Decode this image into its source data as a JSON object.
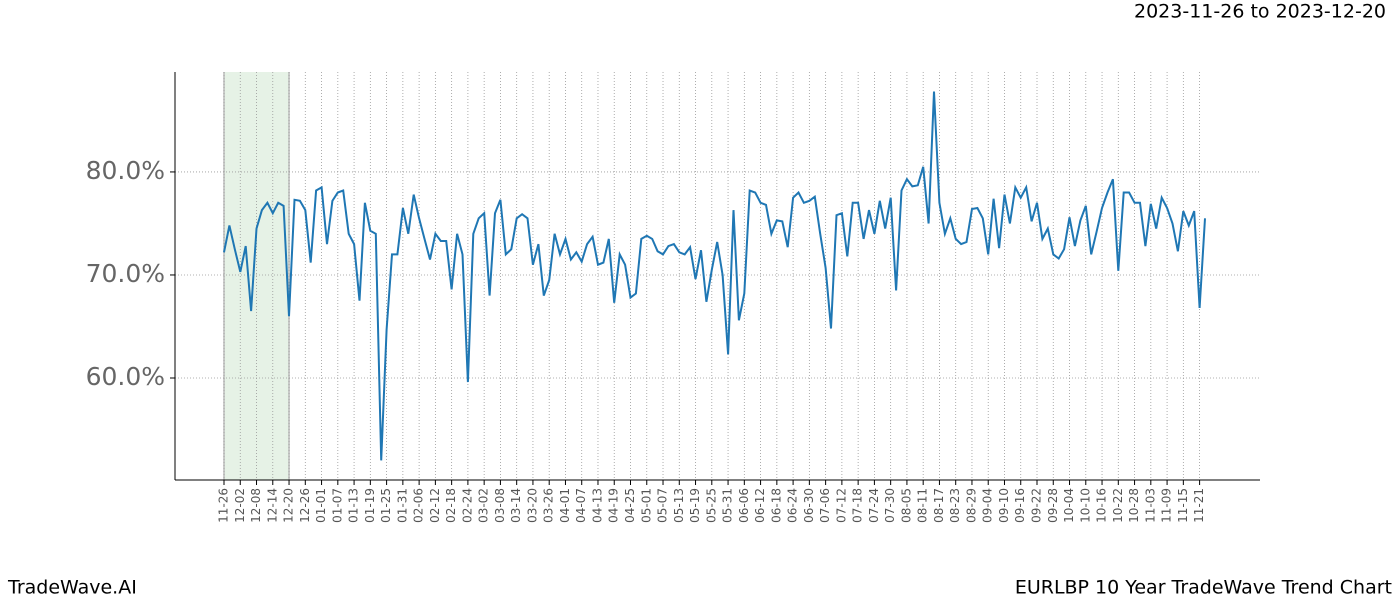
{
  "chart_data": {
    "type": "line",
    "subtitle": "2023-11-26 to 2023-12-20",
    "footer_left": "TradeWave.AI",
    "footer_right": "EURLBP 10 Year TradeWave Trend Chart",
    "color": "#1f77b4",
    "shade": {
      "from": "11-26",
      "to": "12-20",
      "color": "#e6f2e6"
    },
    "grid": true,
    "ylim": [
      50.1,
      89.7
    ],
    "yticks": [
      {
        "value": 60,
        "label": "60.0%"
      },
      {
        "value": 70,
        "label": "70.0%"
      },
      {
        "value": 80,
        "label": "80.0%"
      }
    ],
    "categories": [
      "11-26",
      null,
      null,
      "12-02",
      null,
      null,
      "12-08",
      null,
      null,
      "12-14",
      null,
      null,
      "12-20",
      null,
      null,
      "12-26",
      null,
      null,
      "01-01",
      null,
      null,
      "01-07",
      null,
      null,
      "01-13",
      null,
      null,
      "01-19",
      null,
      null,
      "01-25",
      null,
      null,
      "01-31",
      null,
      null,
      "02-06",
      null,
      null,
      "02-12",
      null,
      null,
      "02-18",
      null,
      null,
      "02-24",
      null,
      null,
      "03-02",
      null,
      null,
      "03-08",
      null,
      null,
      "03-14",
      null,
      null,
      "03-20",
      null,
      null,
      "03-26",
      null,
      null,
      "04-01",
      null,
      null,
      "04-07",
      null,
      null,
      "04-13",
      null,
      null,
      "04-19",
      null,
      null,
      "04-25",
      null,
      null,
      "05-01",
      null,
      null,
      "05-07",
      null,
      null,
      "05-13",
      null,
      null,
      "05-19",
      null,
      null,
      "05-25",
      null,
      null,
      "05-31",
      null,
      null,
      "06-06",
      null,
      null,
      "06-12",
      null,
      null,
      "06-18",
      null,
      null,
      "06-24",
      null,
      null,
      "06-30",
      null,
      null,
      "07-06",
      null,
      null,
      "07-12",
      null,
      null,
      "07-18",
      null,
      null,
      "07-24",
      null,
      null,
      "07-30",
      null,
      null,
      "08-05",
      null,
      null,
      "08-11",
      null,
      null,
      "08-17",
      null,
      null,
      "08-23",
      null,
      null,
      "08-29",
      null,
      null,
      "09-04",
      null,
      null,
      "09-10",
      null,
      null,
      "09-16",
      null,
      null,
      "09-22",
      null,
      null,
      "09-28",
      null,
      null,
      "10-04",
      null,
      null,
      "10-10",
      null,
      null,
      "10-16",
      null,
      null,
      "10-22",
      null,
      null,
      "10-28",
      null,
      null,
      "11-03",
      null,
      null,
      "11-09",
      null,
      null,
      "11-15",
      null,
      null,
      "11-21",
      null
    ],
    "values": [
      72.2,
      74.8,
      72.5,
      70.3,
      72.8,
      66.5,
      74.5,
      76.3,
      77,
      76,
      77,
      76.7,
      66,
      77.3,
      77.2,
      76.3,
      71.2,
      78.2,
      78.5,
      73,
      77.2,
      78,
      78.2,
      74,
      73,
      67.5,
      77,
      74.3,
      74,
      52,
      64.7,
      72,
      72,
      76.5,
      74,
      77.8,
      75.5,
      73.5,
      71.5,
      74,
      73.3,
      73.3,
      68.6,
      74,
      72,
      59.6,
      74,
      75.5,
      76,
      68,
      76,
      77.3,
      72,
      72.5,
      75.5,
      75.9,
      75.5,
      71,
      73,
      68,
      69.5,
      74,
      72,
      73.5,
      71.5,
      72.2,
      71.3,
      73,
      73.7,
      71,
      71.2,
      73.5,
      67.3,
      72,
      71,
      67.8,
      68.2,
      73.5,
      73.8,
      73.5,
      72.3,
      72,
      72.8,
      73,
      72.2,
      72,
      72.7,
      69.6,
      72.4,
      67.4,
      70.5,
      73.2,
      70,
      62.3,
      76.3,
      65.6,
      68.2,
      78.2,
      78,
      77,
      76.8,
      74,
      75.3,
      75.2,
      72.7,
      77.5,
      78,
      77,
      77.2,
      77.6,
      74,
      70.7,
      64.8,
      75.8,
      76,
      71.8,
      77,
      77,
      73.5,
      76.3,
      74,
      77.2,
      74.5,
      77.5,
      68.5,
      78.2,
      79.3,
      78.6,
      78.7,
      80.5,
      75,
      87.8,
      77,
      74,
      75.5,
      73.5,
      73,
      73.2,
      76.4,
      76.5,
      75.5,
      72,
      77.4,
      72.6,
      77.8,
      75,
      78.5,
      77.5,
      78.5,
      75.2,
      77,
      73.5,
      74.5,
      72,
      71.6,
      72.5,
      75.6,
      72.8,
      75.3,
      76.7,
      72,
      74.2,
      76.5,
      78,
      79.3,
      70.4,
      78,
      78,
      77,
      77,
      72.8,
      76.9,
      74.5,
      77.5,
      76.5,
      75,
      72.3,
      76.2,
      74.8,
      76.2,
      66.8,
      75.5
    ]
  }
}
